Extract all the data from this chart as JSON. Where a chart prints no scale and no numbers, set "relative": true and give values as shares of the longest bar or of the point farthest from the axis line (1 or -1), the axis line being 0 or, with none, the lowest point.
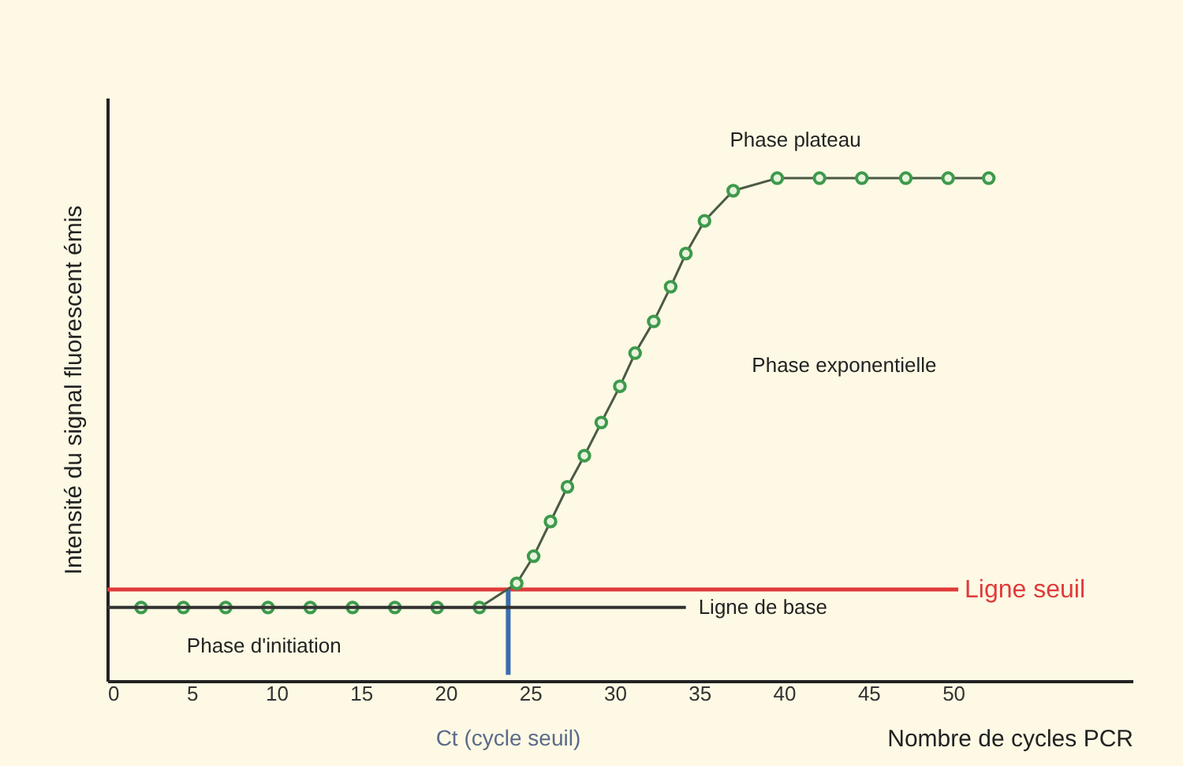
{
  "chart_data": {
    "type": "line",
    "relative": true,
    "ylabel": "Intensité du signal fluorescent émis",
    "xlabel": "Nombre de cycles PCR",
    "xlim": [
      0,
      60.6
    ],
    "xticks": [
      0,
      5,
      10,
      15,
      20,
      25,
      30,
      35,
      40,
      45,
      50
    ],
    "marker": "circle",
    "grid": false,
    "series": [
      {
        "color": "#3d9a4c",
        "x": [
          2,
          4.5,
          7,
          9.5,
          12,
          14.5,
          17,
          19.5,
          22,
          24.2,
          25.2,
          26.2,
          27.2,
          28.2,
          29.2,
          30.3,
          31.2,
          32.3,
          33.3,
          34.2,
          35.3,
          37.0,
          39.6,
          42.1,
          44.6,
          47.2,
          49.7,
          52.1
        ],
        "values": [
          0.146,
          0.146,
          0.146,
          0.146,
          0.146,
          0.146,
          0.146,
          0.146,
          0.146,
          0.194,
          0.248,
          0.317,
          0.386,
          0.448,
          0.514,
          0.586,
          0.652,
          0.715,
          0.784,
          0.85,
          0.915,
          0.975,
          1,
          1,
          1,
          1,
          1,
          1
        ]
      },
      {
        "name": "Ligne de base",
        "type": "line",
        "marker": "none",
        "color": "#333333",
        "x": [
          0,
          34.2
        ],
        "values": [
          0.146,
          0.146
        ]
      }
    ],
    "ref_lines": [
      {
        "axis": "y",
        "value": 0.182,
        "label": "Ligne seuil",
        "color": "#e03a3a"
      },
      {
        "axis": "x",
        "value": 23.7,
        "label": "Ct (cycle seuil)",
        "color": "#3a6db0"
      }
    ],
    "annotations": [
      "Phase plateau",
      "Phase exponentielle",
      "Phase d'initiation"
    ]
  }
}
